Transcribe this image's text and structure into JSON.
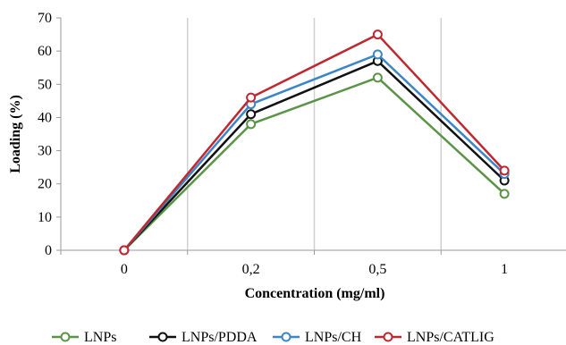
{
  "chart_data": {
    "type": "line",
    "xlabel": "Concentration (mg/ml)",
    "ylabel": "Loading (%)",
    "categories": [
      "0",
      "0,2",
      "0,5",
      "1"
    ],
    "ylim": [
      0,
      70
    ],
    "yticks": [
      "0",
      "10",
      "20",
      "30",
      "40",
      "50",
      "60",
      "70"
    ],
    "grid": "vertical",
    "legend_position": "bottom",
    "series": [
      {
        "name": "LNPs",
        "color": "#5a9447",
        "values": [
          0,
          38,
          52,
          17
        ]
      },
      {
        "name": "LNPs/PDDA",
        "color": "#111111",
        "values": [
          0,
          41,
          57,
          21
        ]
      },
      {
        "name": "LNPs/CH",
        "color": "#3d85c6",
        "values": [
          0,
          44,
          59,
          23
        ]
      },
      {
        "name": "LNPs/CATLIG",
        "color": "#c0282f",
        "values": [
          0,
          46,
          65,
          24
        ]
      }
    ]
  }
}
